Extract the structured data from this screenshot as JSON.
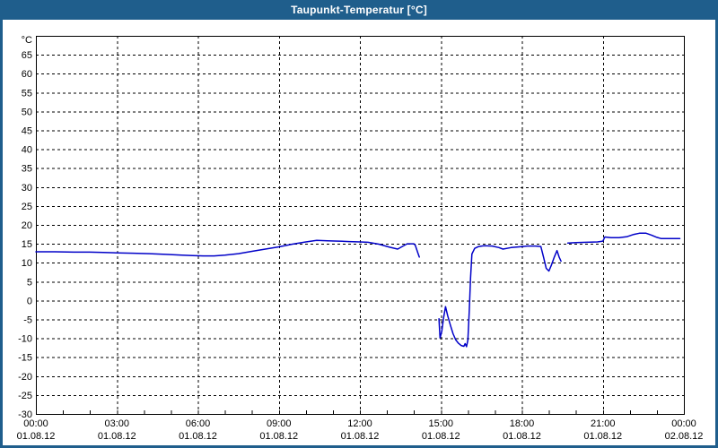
{
  "window": {
    "title": "Taupunkt-Temperatur [°C]",
    "colors": {
      "titlebar_bg": "#1F5E8C",
      "titlebar_text": "#FFFFFF",
      "frame": "#1F5E8C",
      "plot_bg": "#FFFFFF",
      "grid": "#000000",
      "axis": "#000000",
      "line": "#0000C8",
      "label": "#000000"
    }
  },
  "chart_data": {
    "type": "line",
    "title": "Taupunkt-Temperatur [°C]",
    "ylabel": "°C",
    "grid": "dashed",
    "legend": "none",
    "y_axis": {
      "unit": "°C",
      "range": [
        -30,
        70
      ],
      "tick_step": 5,
      "tick_values": [
        65,
        60,
        55,
        50,
        45,
        40,
        35,
        30,
        25,
        20,
        15,
        10,
        5,
        0,
        -5,
        -10,
        -15,
        -20,
        -25,
        -30
      ]
    },
    "x_axis": {
      "range_hours": [
        0,
        24
      ],
      "major_tick_every_hours": 3,
      "minor_tick_every_hours": 1,
      "ticks_hours": [
        0,
        3,
        6,
        9,
        12,
        15,
        18,
        21,
        24
      ],
      "time_labels": [
        "00:00",
        "03:00",
        "06:00",
        "09:00",
        "12:00",
        "15:00",
        "18:00",
        "21:00",
        "00:00"
      ],
      "date_labels": [
        "01.08.12",
        "01.08.12",
        "01.08.12",
        "01.08.12",
        "01.08.12",
        "01.08.12",
        "01.08.12",
        "01.08.12",
        "02.08.12"
      ]
    },
    "series": [
      {
        "name": "Taupunkt-Temperatur",
        "color": "#0000C8",
        "segments": [
          [
            [
              0,
              12.9
            ],
            [
              0.7,
              12.9
            ],
            [
              1.4,
              12.8
            ],
            [
              2,
              12.8
            ],
            [
              2.5,
              12.7
            ],
            [
              3,
              12.6
            ],
            [
              3.6,
              12.5
            ],
            [
              4.2,
              12.4
            ],
            [
              4.8,
              12.2
            ],
            [
              5.4,
              12.0
            ],
            [
              5.8,
              11.9
            ],
            [
              6.2,
              11.8
            ],
            [
              6.6,
              11.8
            ],
            [
              7,
              12.0
            ],
            [
              7.5,
              12.4
            ],
            [
              8,
              13.0
            ],
            [
              8.5,
              13.6
            ],
            [
              9,
              14.2
            ],
            [
              9.5,
              14.9
            ],
            [
              10,
              15.5
            ],
            [
              10.4,
              15.9
            ],
            [
              10.8,
              15.8
            ],
            [
              11.2,
              15.7
            ],
            [
              11.6,
              15.6
            ],
            [
              12,
              15.5
            ],
            [
              12.3,
              15.4
            ],
            [
              12.7,
              14.9
            ],
            [
              13.1,
              14.1
            ],
            [
              13.4,
              13.6
            ],
            [
              13.6,
              14.4
            ],
            [
              13.75,
              15.0
            ],
            [
              14.0,
              15.0
            ],
            [
              14.05,
              14.6
            ],
            [
              14.15,
              12.5
            ],
            [
              14.2,
              11.5
            ]
          ],
          [
            [
              14.93,
              -4.8
            ],
            [
              14.97,
              -9.9
            ],
            [
              15.03,
              -8.2
            ],
            [
              15.1,
              -4.5
            ],
            [
              15.17,
              -1.6
            ],
            [
              15.25,
              -4.0
            ],
            [
              15.35,
              -6.5
            ],
            [
              15.45,
              -8.8
            ],
            [
              15.55,
              -10.4
            ],
            [
              15.65,
              -11.3
            ],
            [
              15.75,
              -11.9
            ],
            [
              15.85,
              -12.1
            ],
            [
              15.9,
              -11.4
            ],
            [
              15.95,
              -12.2
            ],
            [
              16.0,
              -10.5
            ],
            [
              16.05,
              -3.0
            ],
            [
              16.1,
              6.0
            ],
            [
              16.15,
              12.3
            ],
            [
              16.25,
              13.8
            ],
            [
              16.4,
              14.3
            ],
            [
              16.6,
              14.5
            ],
            [
              16.9,
              14.4
            ],
            [
              17.15,
              14.0
            ],
            [
              17.3,
              13.6
            ],
            [
              17.6,
              14.0
            ],
            [
              17.9,
              14.2
            ],
            [
              18.2,
              14.4
            ],
            [
              18.5,
              14.4
            ],
            [
              18.7,
              14.3
            ],
            [
              18.8,
              11.5
            ],
            [
              18.9,
              8.5
            ],
            [
              19.0,
              7.8
            ],
            [
              19.1,
              9.5
            ],
            [
              19.2,
              11.5
            ],
            [
              19.3,
              13.2
            ],
            [
              19.38,
              11.5
            ],
            [
              19.45,
              10.4
            ]
          ],
          [
            [
              19.7,
              15.2
            ],
            [
              20.0,
              15.3
            ],
            [
              20.4,
              15.4
            ],
            [
              20.8,
              15.5
            ],
            [
              21.0,
              15.7
            ],
            [
              21.07,
              16.8
            ],
            [
              21.3,
              16.6
            ],
            [
              21.6,
              16.6
            ],
            [
              21.9,
              16.9
            ],
            [
              22.15,
              17.5
            ],
            [
              22.35,
              17.8
            ],
            [
              22.6,
              17.8
            ],
            [
              22.8,
              17.3
            ],
            [
              23.0,
              16.7
            ],
            [
              23.15,
              16.4
            ],
            [
              23.5,
              16.4
            ],
            [
              23.85,
              16.4
            ]
          ]
        ]
      }
    ]
  }
}
